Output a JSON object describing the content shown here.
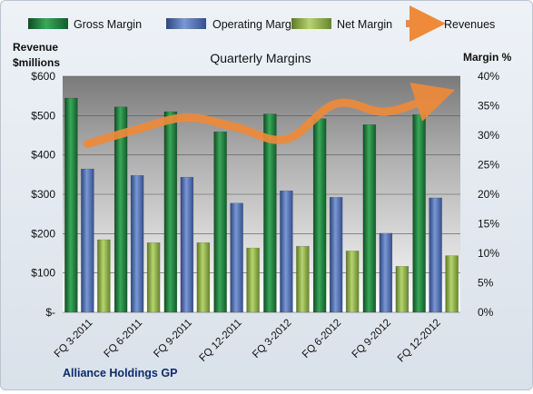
{
  "chart_data": {
    "type": "bar",
    "title": "Quarterly Margins",
    "footer": "Alliance Holdings GP",
    "categories": [
      "FQ 3-2011",
      "FQ 6-2011",
      "FQ 9-2011",
      "FQ 12-2011",
      "FQ 3-2012",
      "FQ 6-2012",
      "FQ 9-2012",
      "FQ 12-2012"
    ],
    "ylabel_left": [
      "Revenue",
      "$millions"
    ],
    "ylabel_right": "Margin %",
    "ylim_left": [
      0,
      600
    ],
    "ylim_right": [
      0,
      40
    ],
    "left_ticks": [
      "$-",
      "$100",
      "$200",
      "$300",
      "$400",
      "$500",
      "$600"
    ],
    "right_ticks": [
      "0%",
      "5%",
      "10%",
      "15%",
      "20%",
      "25%",
      "30%",
      "35%",
      "40%"
    ],
    "grid": true,
    "legend_position": "top",
    "series": [
      {
        "name": "Gross Margin",
        "type": "bar",
        "axis": "right",
        "color": "#1f7a3a",
        "values": [
          36.3,
          34.8,
          34.0,
          30.6,
          33.6,
          32.8,
          31.8,
          33.5
        ]
      },
      {
        "name": "Operating Margin",
        "type": "bar",
        "axis": "right",
        "color": "#4f6fb0",
        "values": [
          24.3,
          23.2,
          22.9,
          18.5,
          20.6,
          19.5,
          13.4,
          19.4
        ]
      },
      {
        "name": "Net Margin",
        "type": "bar",
        "axis": "right",
        "color": "#8fb04a",
        "values": [
          12.3,
          11.8,
          11.8,
          10.9,
          11.2,
          10.4,
          7.8,
          9.6
        ]
      },
      {
        "name": "Revenues",
        "type": "line",
        "axis": "left",
        "color": "#ee8a3a",
        "values": [
          428,
          465,
          495,
          470,
          440,
          530,
          510,
          550
        ]
      }
    ]
  }
}
